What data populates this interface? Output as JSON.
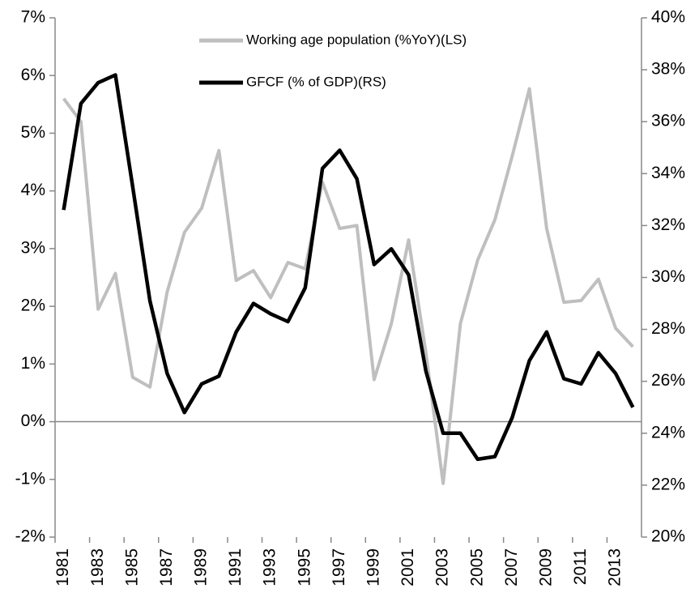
{
  "chart_data": {
    "type": "line",
    "categories": [
      "1981",
      null,
      "1983",
      null,
      "1985",
      null,
      "1987",
      null,
      "1989",
      null,
      "1991",
      null,
      "1993",
      null,
      "1995",
      null,
      "1997",
      null,
      "1999",
      null,
      "2001",
      null,
      "2003",
      null,
      "2005",
      null,
      "2007",
      null,
      "2009",
      null,
      "2011",
      null,
      "2013",
      null
    ],
    "series": [
      {
        "name": "Working age population (%YoY)(LS)",
        "color": "#bfbfbf",
        "axis": "y",
        "values": [
          5.6,
          5.2,
          1.95,
          2.57,
          0.77,
          0.6,
          2.25,
          3.28,
          3.7,
          4.7,
          2.45,
          2.62,
          2.15,
          2.76,
          2.65,
          4.15,
          3.35,
          3.4,
          0.73,
          1.7,
          3.15,
          1.2,
          -1.07,
          1.7,
          2.8,
          3.5,
          4.6,
          5.77,
          3.35,
          2.07,
          2.1,
          2.47,
          1.62,
          1.3
        ]
      },
      {
        "name": "GFCF (% of GDP)(RS)",
        "color": "#000000",
        "axis": "y2",
        "values": [
          32.6,
          36.7,
          37.5,
          37.8,
          33.5,
          29.1,
          26.3,
          24.8,
          25.9,
          26.2,
          27.9,
          29.0,
          28.6,
          28.3,
          29.6,
          34.2,
          34.9,
          33.8,
          30.5,
          31.1,
          30.1,
          26.4,
          24.0,
          24.0,
          23.0,
          23.1,
          24.6,
          26.8,
          27.9,
          26.1,
          25.9,
          27.1,
          26.3,
          25.0
        ]
      }
    ],
    "ylim": [
      -2,
      7
    ],
    "yticks": [
      {
        "value": -2,
        "label": "-2%"
      },
      {
        "value": -1,
        "label": "-1%"
      },
      {
        "value": 0,
        "label": "0%"
      },
      {
        "value": 1,
        "label": "1%"
      },
      {
        "value": 2,
        "label": "2%"
      },
      {
        "value": 3,
        "label": "3%"
      },
      {
        "value": 4,
        "label": "4%"
      },
      {
        "value": 5,
        "label": "5%"
      },
      {
        "value": 6,
        "label": "6%"
      },
      {
        "value": 7,
        "label": "7%"
      }
    ],
    "y2lim": [
      20,
      40
    ],
    "y2ticks": [
      {
        "value": 20,
        "label": "20%"
      },
      {
        "value": 22,
        "label": "22%"
      },
      {
        "value": 24,
        "label": "24%"
      },
      {
        "value": 26,
        "label": "26%"
      },
      {
        "value": 28,
        "label": "28%"
      },
      {
        "value": 30,
        "label": "30%"
      },
      {
        "value": 32,
        "label": "32%"
      },
      {
        "value": 34,
        "label": "34%"
      },
      {
        "value": 36,
        "label": "36%"
      },
      {
        "value": 38,
        "label": "38%"
      },
      {
        "value": 40,
        "label": "40%"
      }
    ],
    "legend": "top"
  }
}
